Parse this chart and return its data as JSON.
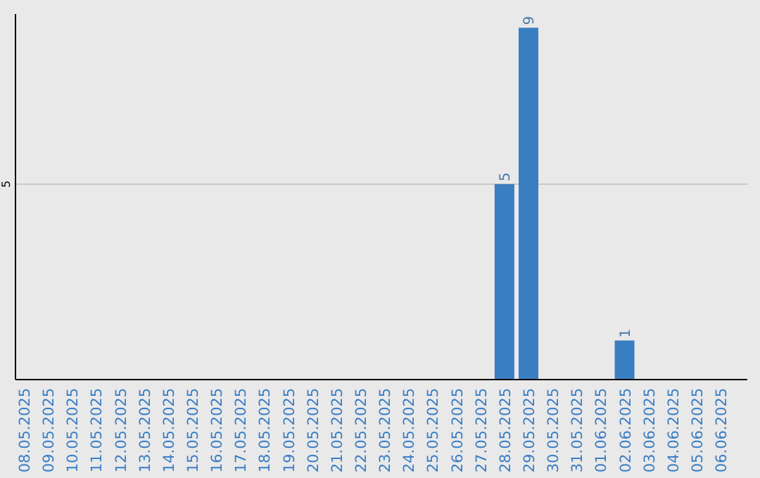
{
  "chart_data": {
    "type": "bar",
    "categories": [
      "08.05.2025",
      "09.05.2025",
      "10.05.2025",
      "11.05.2025",
      "12.05.2025",
      "13.05.2025",
      "14.05.2025",
      "15.05.2025",
      "16.05.2025",
      "17.05.2025",
      "18.05.2025",
      "19.05.2025",
      "20.05.2025",
      "21.05.2025",
      "22.05.2025",
      "23.05.2025",
      "24.05.2025",
      "25.05.2025",
      "26.05.2025",
      "27.05.2025",
      "28.05.2025",
      "29.05.2025",
      "30.05.2025",
      "31.05.2025",
      "01.06.2025",
      "02.06.2025",
      "03.06.2025",
      "04.06.2025",
      "05.06.2025",
      "06.06.2025"
    ],
    "values": [
      null,
      null,
      null,
      null,
      null,
      null,
      null,
      null,
      null,
      null,
      null,
      null,
      null,
      null,
      null,
      null,
      null,
      null,
      null,
      null,
      5,
      9,
      null,
      null,
      null,
      1,
      null,
      null,
      null,
      null
    ],
    "value_labels": [
      null,
      null,
      null,
      null,
      null,
      null,
      null,
      null,
      null,
      null,
      null,
      null,
      null,
      null,
      null,
      null,
      null,
      null,
      null,
      null,
      "5",
      "9",
      null,
      null,
      null,
      "1",
      null,
      null,
      null,
      null
    ],
    "color": "#3a7ec2",
    "ylim": [
      0,
      9.35
    ],
    "yticks": [
      5
    ],
    "grid": "y"
  }
}
